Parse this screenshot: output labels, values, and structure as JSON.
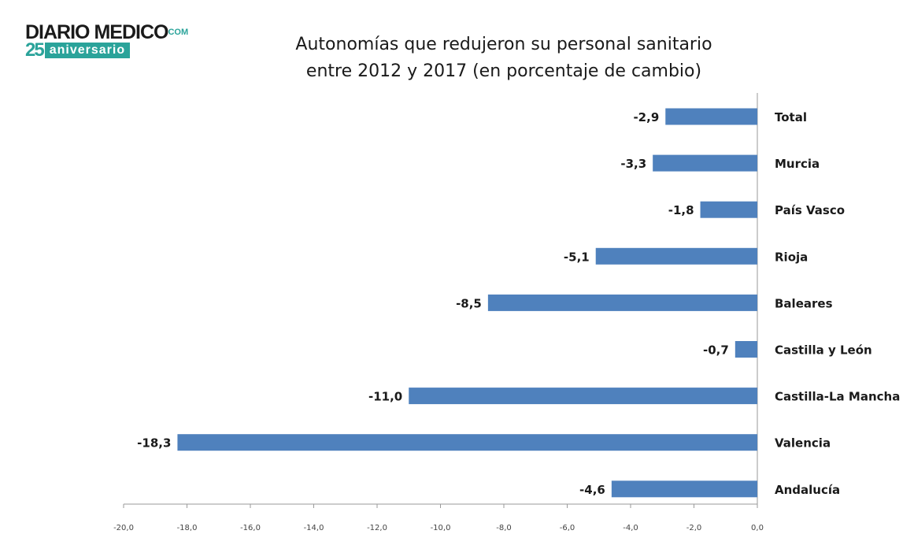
{
  "logo": {
    "main": "DIARIO MEDICO",
    "com": "COM",
    "number": "25",
    "anniversary": "aniversario"
  },
  "chart_data": {
    "type": "bar",
    "orientation": "horizontal",
    "title": "Autonomías que redujeron su personal sanitario entre 2012 y 2017 (en porcentaje de cambio)",
    "title_lines": [
      "Autonomías que redujeron su personal sanitario",
      "entre 2012 y 2017 (en porcentaje de cambio)"
    ],
    "categories": [
      "Total",
      "Murcia",
      "País Vasco",
      "Rioja",
      "Baleares",
      "Castilla y León",
      "Castilla-La Mancha",
      "Valencia",
      "Andalucía"
    ],
    "values": [
      -2.9,
      -3.3,
      -1.8,
      -5.1,
      -8.5,
      -0.7,
      -11.0,
      -18.3,
      -4.6
    ],
    "value_labels": [
      "-2,9",
      "-3,3",
      "-1,8",
      "-5,1",
      "-8,5",
      "-0,7",
      "-11,0",
      "-18,3",
      "-4,6"
    ],
    "xlim": [
      -20,
      0
    ],
    "x_ticks": [
      -20,
      -18,
      -16,
      -14,
      -12,
      -10,
      -8,
      -6,
      -4,
      -2,
      0
    ],
    "x_tick_labels": [
      "-20,0",
      "-18,0",
      "-16,0",
      "-14,0",
      "-12,0",
      "-10,0",
      "-8,0",
      "-6,0",
      "-4,0",
      "-2,0",
      "0,0"
    ],
    "bar_color": "#4f81bd",
    "grid": false,
    "legend": "none",
    "xlabel": "",
    "ylabel": ""
  }
}
